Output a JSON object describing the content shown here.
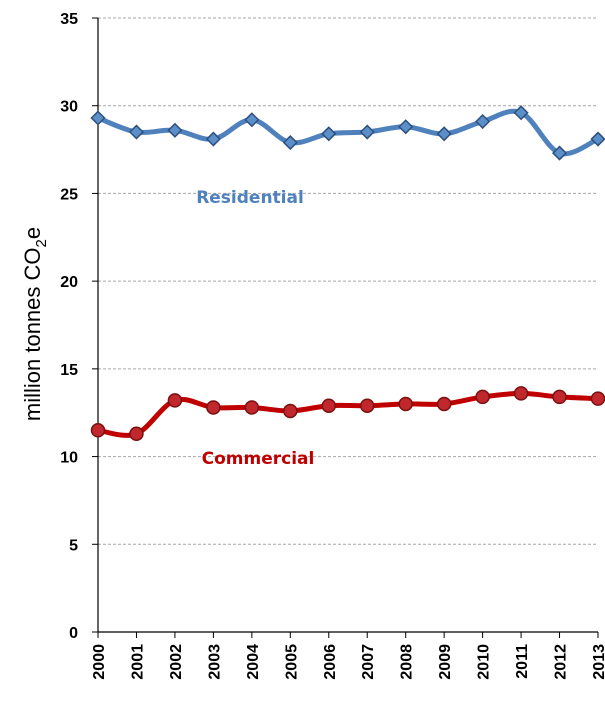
{
  "chart_data": {
    "type": "line",
    "title": "",
    "xlabel": "",
    "ylabel": "million tonnes CO",
    "ylabel_subscript": "2",
    "ylabel_suffix": "e",
    "x": [
      "2000",
      "2001",
      "2002",
      "2003",
      "2004",
      "2005",
      "2006",
      "2007",
      "2008",
      "2009",
      "2010",
      "2011",
      "2012",
      "2013"
    ],
    "ylim": [
      0,
      35
    ],
    "yticks": [
      0,
      5,
      10,
      15,
      20,
      25,
      30,
      35
    ],
    "grid": "horizontal-dashed",
    "series": [
      {
        "name": "Residential",
        "color": "#4f81bd",
        "marker": "diamond",
        "values": [
          29.3,
          28.5,
          28.6,
          28.1,
          29.2,
          27.9,
          28.4,
          28.5,
          28.8,
          28.4,
          29.1,
          29.6,
          27.3,
          28.1
        ]
      },
      {
        "name": "Commercial",
        "color": "#c00000",
        "marker": "circle",
        "values": [
          11.5,
          11.3,
          13.2,
          12.8,
          12.8,
          12.6,
          12.9,
          12.9,
          13.0,
          13.0,
          13.4,
          13.6,
          13.4,
          13.3
        ]
      }
    ]
  }
}
